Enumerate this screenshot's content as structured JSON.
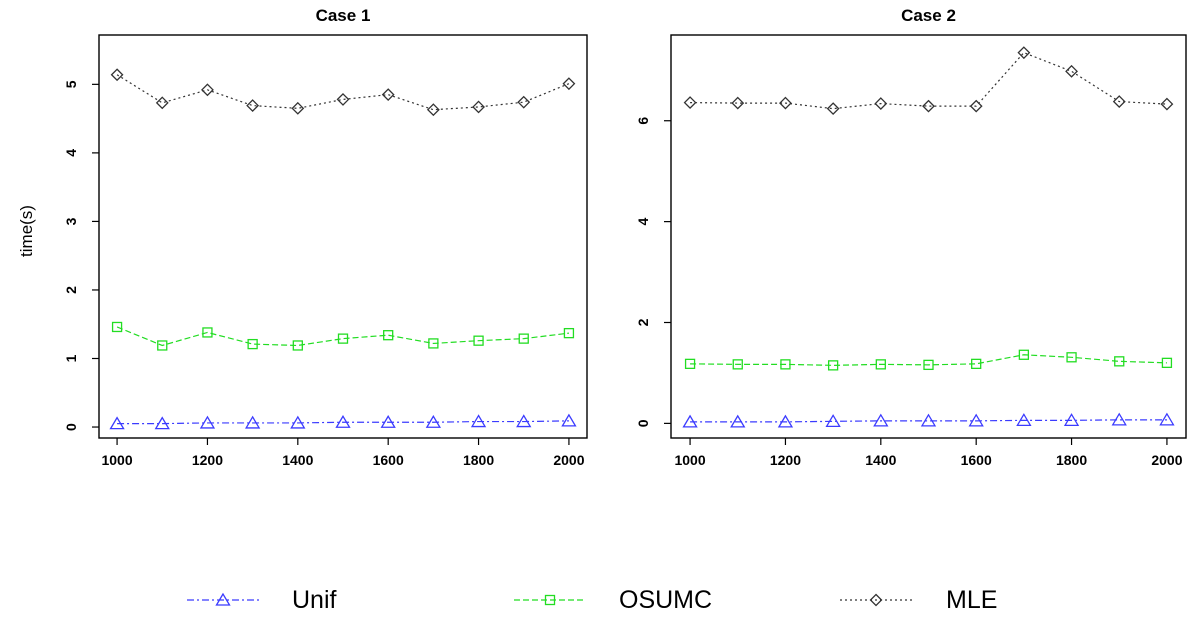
{
  "ylabel": "time(s)",
  "legend": {
    "placement": "bottom",
    "items": [
      {
        "label": "Unif",
        "color": "#3b3bff",
        "marker": "triangle",
        "dash": "dashdot"
      },
      {
        "label": "OSUMC",
        "color": "#22dd22",
        "marker": "square",
        "dash": "dashed"
      },
      {
        "label": "MLE",
        "color": "#333333",
        "marker": "diamond",
        "dash": "dotted"
      }
    ]
  },
  "chart_data": [
    {
      "type": "line",
      "title": "Case 1",
      "xlabel": "",
      "ylabel": "time(s)",
      "x": [
        1000,
        1100,
        1200,
        1300,
        1400,
        1500,
        1600,
        1700,
        1800,
        1900,
        2000
      ],
      "xticks": [
        1000,
        1200,
        1400,
        1600,
        1800,
        2000
      ],
      "yticks": [
        0,
        1,
        2,
        3,
        4,
        5
      ],
      "xlim": [
        960,
        2040
      ],
      "ylim": [
        -0.16,
        5.72
      ],
      "grid": false,
      "series": [
        {
          "name": "Unif",
          "values": [
            0.05,
            0.05,
            0.06,
            0.06,
            0.06,
            0.07,
            0.07,
            0.07,
            0.08,
            0.08,
            0.09
          ]
        },
        {
          "name": "OSUMC",
          "values": [
            1.46,
            1.19,
            1.38,
            1.21,
            1.19,
            1.29,
            1.34,
            1.22,
            1.26,
            1.29,
            1.37
          ]
        },
        {
          "name": "MLE",
          "values": [
            5.14,
            4.73,
            4.92,
            4.69,
            4.65,
            4.78,
            4.85,
            4.63,
            4.67,
            4.74,
            5.01
          ]
        }
      ]
    },
    {
      "type": "line",
      "title": "Case 2",
      "xlabel": "",
      "ylabel": "",
      "x": [
        1000,
        1100,
        1200,
        1300,
        1400,
        1500,
        1600,
        1700,
        1800,
        1900,
        2000
      ],
      "xticks": [
        1000,
        1200,
        1400,
        1600,
        1800,
        2000
      ],
      "yticks": [
        0,
        2,
        4,
        6
      ],
      "xlim": [
        960,
        2040
      ],
      "ylim": [
        -0.29,
        7.7
      ],
      "grid": false,
      "series": [
        {
          "name": "Unif",
          "values": [
            0.03,
            0.03,
            0.03,
            0.04,
            0.05,
            0.05,
            0.05,
            0.06,
            0.06,
            0.07,
            0.07
          ]
        },
        {
          "name": "OSUMC",
          "values": [
            1.18,
            1.17,
            1.17,
            1.15,
            1.17,
            1.16,
            1.18,
            1.36,
            1.31,
            1.23,
            1.2
          ]
        },
        {
          "name": "MLE",
          "values": [
            6.36,
            6.35,
            6.35,
            6.24,
            6.34,
            6.29,
            6.29,
            7.35,
            6.98,
            6.38,
            6.33
          ]
        }
      ]
    }
  ]
}
